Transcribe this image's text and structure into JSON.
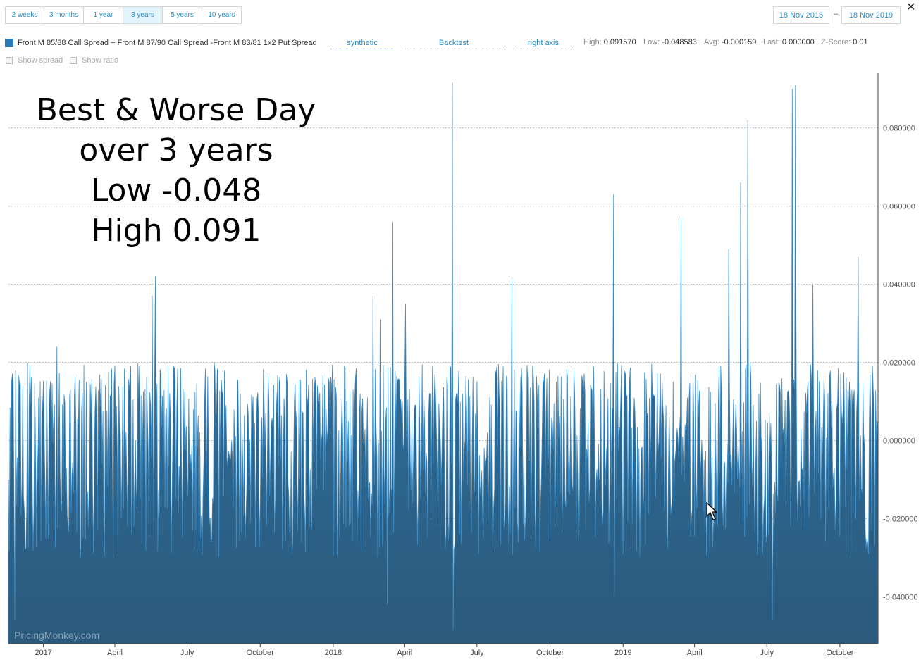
{
  "range_buttons": [
    {
      "label": "2 weeks",
      "active": false
    },
    {
      "label": "3 months",
      "active": false
    },
    {
      "label": "1 year",
      "active": false
    },
    {
      "label": "3 years",
      "active": true
    },
    {
      "label": "5 years",
      "active": false
    },
    {
      "label": "10 years",
      "active": false
    }
  ],
  "date_from": "18 Nov 2016",
  "date_separator": "–",
  "date_to": "18 Nov 2019",
  "close_glyph": "✕",
  "series": {
    "name": "Front M 85/88 Call Spread + Front M 87/90 Call Spread -Front M 83/81 1x2 Put Spread",
    "color": "#2c7bb6"
  },
  "dropdowns": {
    "mode": "synthetic",
    "source": "Backtest",
    "axis": "right axis"
  },
  "stats": {
    "high_label": "High:",
    "high_value": "0.091570",
    "low_label": "Low:",
    "low_value": "-0.048583",
    "avg_label": "Avg:",
    "avg_value": "-0.000159",
    "last_label": "Last:",
    "last_value": "0.000000",
    "z_label": "Z-Score:",
    "z_value": "0.01"
  },
  "options": {
    "show_spread": "Show spread",
    "show_ratio": "Show ratio"
  },
  "annotation": {
    "line1": "Best & Worse Day",
    "line2": "over 3 years",
    "line3": "Low -0.048",
    "line4": "High 0.091"
  },
  "watermark": "PricingMonkey.com",
  "chart_data": {
    "type": "area",
    "x_start": "2016-11-18",
    "x_end": "2019-11-18",
    "x_tick_labels": [
      "2017",
      "April",
      "July",
      "October",
      "2018",
      "April",
      "July",
      "October",
      "2019",
      "April",
      "July",
      "October"
    ],
    "x_tick_dates": [
      "2017-01-01",
      "2017-04-01",
      "2017-07-01",
      "2017-10-01",
      "2018-01-01",
      "2018-04-01",
      "2018-07-01",
      "2018-10-01",
      "2019-01-01",
      "2019-04-01",
      "2019-07-01",
      "2019-10-01"
    ],
    "y_axis_side": "right",
    "ylim": [
      -0.052,
      0.094
    ],
    "y_ticks": [
      0.08,
      0.06,
      0.04,
      0.02,
      0.0,
      -0.02,
      -0.04
    ],
    "y_tick_labels": [
      "0.080000",
      "0.060000",
      "0.040000",
      "0.020000",
      "0.000000",
      "-0.020000",
      "-0.040000"
    ],
    "grid": true,
    "series": [
      {
        "name": "Front M 85/88 Call Spread + Front M 87/90 Call Spread -Front M 83/81 1x2 Put Spread",
        "approx_daily_range": [
          -0.03,
          0.02
        ],
        "points": [
          {
            "date": "2016-11-18",
            "value": -0.01
          },
          {
            "date": "2016-11-26",
            "value": -0.046
          },
          {
            "date": "2016-12-06",
            "value": 0.014
          },
          {
            "date": "2017-01-18",
            "value": 0.024
          },
          {
            "date": "2017-05-18",
            "value": 0.037
          },
          {
            "date": "2017-05-22",
            "value": 0.042
          },
          {
            "date": "2018-02-20",
            "value": 0.037
          },
          {
            "date": "2018-03-01",
            "value": 0.031
          },
          {
            "date": "2018-03-10",
            "value": -0.042
          },
          {
            "date": "2018-03-17",
            "value": 0.056
          },
          {
            "date": "2018-04-02",
            "value": 0.035
          },
          {
            "date": "2018-05-31",
            "value": 0.0916
          },
          {
            "date": "2018-06-01",
            "value": -0.0486
          },
          {
            "date": "2018-08-14",
            "value": 0.041
          },
          {
            "date": "2018-12-20",
            "value": 0.063
          },
          {
            "date": "2018-12-21",
            "value": -0.04
          },
          {
            "date": "2019-03-15",
            "value": 0.057
          },
          {
            "date": "2019-05-14",
            "value": 0.049
          },
          {
            "date": "2019-05-29",
            "value": 0.066
          },
          {
            "date": "2019-06-07",
            "value": 0.082
          },
          {
            "date": "2019-07-08",
            "value": -0.046
          },
          {
            "date": "2019-08-02",
            "value": 0.09
          },
          {
            "date": "2019-08-06",
            "value": 0.091
          },
          {
            "date": "2019-08-28",
            "value": 0.04
          },
          {
            "date": "2019-10-24",
            "value": 0.047
          },
          {
            "date": "2019-11-11",
            "value": 0.019
          },
          {
            "date": "2019-11-18",
            "value": 0.0
          }
        ]
      }
    ]
  }
}
